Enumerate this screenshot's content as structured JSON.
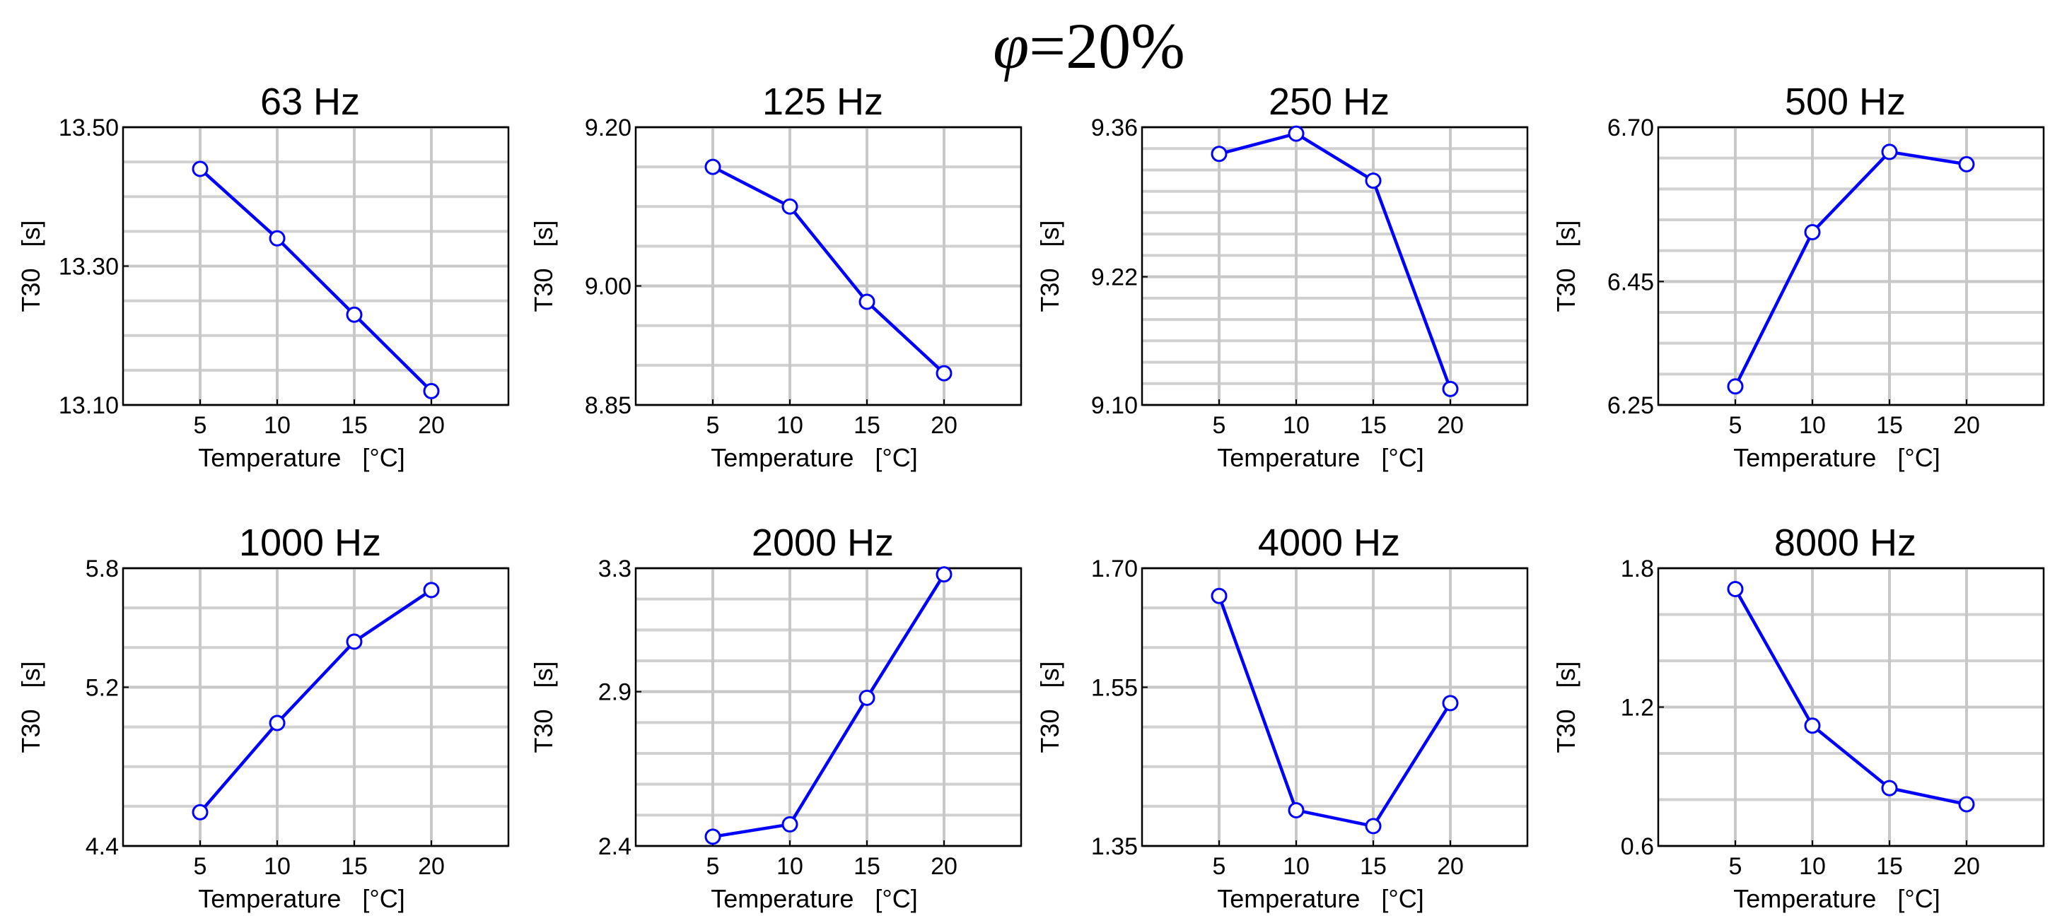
{
  "figure": {
    "title_symbol": "φ",
    "title_rest": "=20%"
  },
  "chart_data": [
    {
      "type": "line",
      "title": "63 Hz",
      "xlabel": "Temperature   [°C]",
      "ylabel": "T30   [s]",
      "x": [
        5,
        10,
        15,
        20
      ],
      "y": [
        13.44,
        13.34,
        13.23,
        13.12
      ],
      "xlim": [
        0,
        25
      ],
      "xticks": [
        5,
        10,
        15,
        20
      ],
      "xtick_labels": [
        "5",
        "10",
        "15",
        "20"
      ],
      "ylim": [
        13.1,
        13.5
      ],
      "yticks": [
        13.1,
        13.3,
        13.5
      ],
      "ytick_labels": [
        "13.10",
        "13.30",
        "13.50"
      ],
      "yminor": 8,
      "grid": true,
      "color": "#0000ff",
      "marker": "circle"
    },
    {
      "type": "line",
      "title": "125 Hz",
      "xlabel": "Temperature   [°C]",
      "ylabel": "T30   [s]",
      "x": [
        5,
        10,
        15,
        20
      ],
      "y": [
        9.15,
        9.1,
        8.98,
        8.89
      ],
      "xlim": [
        0,
        25
      ],
      "xticks": [
        5,
        10,
        15,
        20
      ],
      "xtick_labels": [
        "5",
        "10",
        "15",
        "20"
      ],
      "ylim": [
        8.85,
        9.2
      ],
      "yticks": [
        8.85,
        9.0,
        9.2
      ],
      "ytick_labels": [
        "8.85",
        "9.00",
        "9.20"
      ],
      "yminor": 7,
      "grid": true,
      "color": "#0000ff",
      "marker": "circle"
    },
    {
      "type": "line",
      "title": "250 Hz",
      "xlabel": "Temperature   [°C]",
      "ylabel": "T30   [s]",
      "x": [
        5,
        10,
        15,
        20
      ],
      "y": [
        9.335,
        9.354,
        9.31,
        9.115
      ],
      "xlim": [
        0,
        25
      ],
      "xticks": [
        5,
        10,
        15,
        20
      ],
      "xtick_labels": [
        "5",
        "10",
        "15",
        "20"
      ],
      "ylim": [
        9.1,
        9.36
      ],
      "yticks": [
        9.1,
        9.22,
        9.36
      ],
      "ytick_labels": [
        "9.10",
        "9.22",
        "9.36"
      ],
      "yminor": 13,
      "grid": true,
      "color": "#0000ff",
      "marker": "circle"
    },
    {
      "type": "line",
      "title": "500 Hz",
      "xlabel": "Temperature   [°C]",
      "ylabel": "T30   [s]",
      "x": [
        5,
        10,
        15,
        20
      ],
      "y": [
        6.28,
        6.53,
        6.66,
        6.64
      ],
      "xlim": [
        0,
        25
      ],
      "xticks": [
        5,
        10,
        15,
        20
      ],
      "xtick_labels": [
        "5",
        "10",
        "15",
        "20"
      ],
      "ylim": [
        6.25,
        6.7
      ],
      "yticks": [
        6.25,
        6.45,
        6.7
      ],
      "ytick_labels": [
        "6.25",
        "6.45",
        "6.70"
      ],
      "yminor": 9,
      "grid": true,
      "color": "#0000ff",
      "marker": "circle"
    },
    {
      "type": "line",
      "title": "1000 Hz",
      "xlabel": "Temperature   [°C]",
      "ylabel": "T30   [s]",
      "x": [
        5,
        10,
        15,
        20
      ],
      "y": [
        4.57,
        5.02,
        5.43,
        5.69
      ],
      "xlim": [
        0,
        25
      ],
      "xticks": [
        5,
        10,
        15,
        20
      ],
      "xtick_labels": [
        "5",
        "10",
        "15",
        "20"
      ],
      "ylim": [
        4.4,
        5.8
      ],
      "yticks": [
        4.4,
        5.2,
        5.8
      ],
      "ytick_labels": [
        "4.4",
        "5.2",
        "5.8"
      ],
      "yminor": 7,
      "grid": true,
      "color": "#0000ff",
      "marker": "circle"
    },
    {
      "type": "line",
      "title": "2000 Hz",
      "xlabel": "Temperature   [°C]",
      "ylabel": "T30   [s]",
      "x": [
        5,
        10,
        15,
        20
      ],
      "y": [
        2.43,
        2.47,
        2.88,
        3.28
      ],
      "xlim": [
        0,
        25
      ],
      "xticks": [
        5,
        10,
        15,
        20
      ],
      "xtick_labels": [
        "5",
        "10",
        "15",
        "20"
      ],
      "ylim": [
        2.4,
        3.3
      ],
      "yticks": [
        2.4,
        2.9,
        3.3
      ],
      "ytick_labels": [
        "2.4",
        "2.9",
        "3.3"
      ],
      "yminor": 9,
      "grid": true,
      "color": "#0000ff",
      "marker": "circle"
    },
    {
      "type": "line",
      "title": "4000 Hz",
      "xlabel": "Temperature   [°C]",
      "ylabel": "T30   [s]",
      "x": [
        5,
        10,
        15,
        20
      ],
      "y": [
        1.665,
        1.395,
        1.375,
        1.53
      ],
      "xlim": [
        0,
        25
      ],
      "xticks": [
        5,
        10,
        15,
        20
      ],
      "xtick_labels": [
        "5",
        "10",
        "15",
        "20"
      ],
      "ylim": [
        1.35,
        1.7
      ],
      "yticks": [
        1.35,
        1.55,
        1.7
      ],
      "ytick_labels": [
        "1.35",
        "1.55",
        "1.70"
      ],
      "yminor": 7,
      "grid": true,
      "color": "#0000ff",
      "marker": "circle"
    },
    {
      "type": "line",
      "title": "8000 Hz",
      "xlabel": "Temperature   [°C]",
      "ylabel": "T30   [s]",
      "x": [
        5,
        10,
        15,
        20
      ],
      "y": [
        1.71,
        1.12,
        0.85,
        0.78
      ],
      "xlim": [
        0,
        25
      ],
      "xticks": [
        5,
        10,
        15,
        20
      ],
      "xtick_labels": [
        "5",
        "10",
        "15",
        "20"
      ],
      "ylim": [
        0.6,
        1.8
      ],
      "yticks": [
        0.6,
        1.2,
        1.8
      ],
      "ytick_labels": [
        "0.6",
        "1.2",
        "1.8"
      ],
      "yminor": 6,
      "grid": true,
      "color": "#0000ff",
      "marker": "circle"
    }
  ]
}
